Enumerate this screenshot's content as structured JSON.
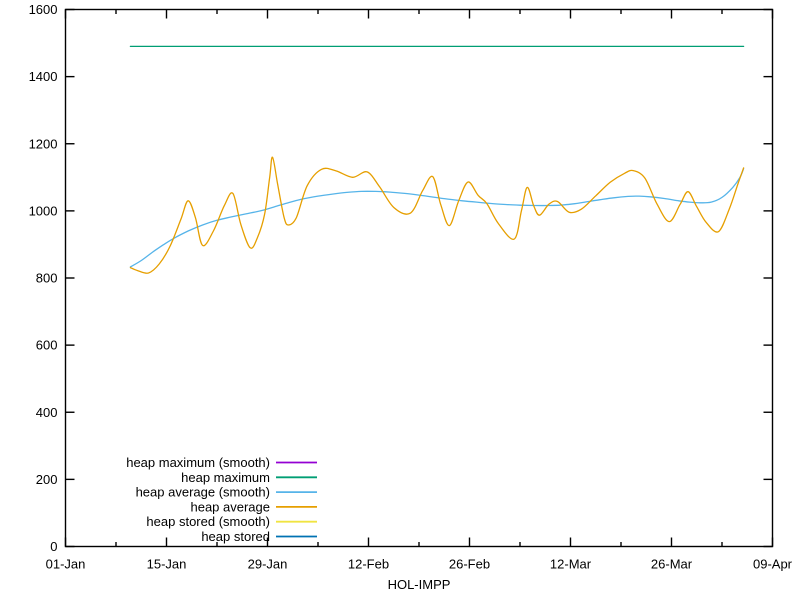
{
  "window": {
    "background": "#ffffff",
    "foreground": "#000000"
  },
  "chart_data": {
    "type": "line",
    "title": "",
    "xlabel": "HOL-IMPP",
    "ylabel": "",
    "grid": false,
    "ylim": [
      0,
      1600
    ],
    "y_tick_interval": 200,
    "y_tick_values": [
      0,
      200,
      400,
      600,
      800,
      1000,
      1200,
      1400,
      1600
    ],
    "y_tick_labels": [
      "0",
      "200",
      "400",
      "600",
      "800",
      "1000",
      "1200",
      "1400",
      "1600"
    ],
    "x_axis": {
      "range_days": [
        0,
        98
      ],
      "major_tick_days": [
        0,
        14,
        28,
        42,
        56,
        70,
        84,
        98
      ],
      "major_tick_labels": [
        "01-Jan",
        "15-Jan",
        "29-Jan",
        "12-Feb",
        "26-Feb",
        "12-Mar",
        "26-Mar",
        "09-Apr"
      ],
      "minor_tick_days": [
        7,
        21,
        35,
        49,
        63,
        77,
        91
      ]
    },
    "legend_position": "bottom-left",
    "legend": [
      {
        "label": "heap maximum (smooth)",
        "color": "#9400d3"
      },
      {
        "label": "heap maximum",
        "color": "#009e73"
      },
      {
        "label": "heap average (smooth)",
        "color": "#56b4e9"
      },
      {
        "label": "heap average",
        "color": "#e69f00"
      },
      {
        "label": "heap stored (smooth)",
        "color": "#f0e442"
      },
      {
        "label": "heap stored",
        "color": "#0072b2"
      }
    ],
    "series": [
      {
        "name": "heap maximum",
        "color": "#009e73",
        "smooth": false,
        "points": [
          [
            9,
            1490
          ],
          [
            94,
            1490
          ]
        ]
      },
      {
        "name": "heap average (smooth)",
        "color": "#56b4e9",
        "smooth": true,
        "points": [
          [
            9,
            833
          ],
          [
            10.5,
            852
          ],
          [
            12,
            876
          ],
          [
            13.5,
            898
          ],
          [
            15,
            918
          ],
          [
            17,
            940
          ],
          [
            19,
            958
          ],
          [
            21,
            972
          ],
          [
            23,
            982
          ],
          [
            25,
            991
          ],
          [
            27,
            1000
          ],
          [
            29,
            1012
          ],
          [
            31,
            1025
          ],
          [
            33,
            1036
          ],
          [
            35,
            1044
          ],
          [
            37,
            1050
          ],
          [
            39,
            1055
          ],
          [
            41,
            1058
          ],
          [
            43,
            1058
          ],
          [
            45,
            1056
          ],
          [
            47,
            1052
          ],
          [
            49,
            1047
          ],
          [
            51,
            1041
          ],
          [
            53,
            1035
          ],
          [
            55,
            1030
          ],
          [
            57,
            1026
          ],
          [
            59,
            1022
          ],
          [
            61,
            1019
          ],
          [
            63,
            1017
          ],
          [
            65,
            1016
          ],
          [
            67,
            1016
          ],
          [
            68.5,
            1017
          ],
          [
            70,
            1020
          ],
          [
            72,
            1026
          ],
          [
            74,
            1033
          ],
          [
            76,
            1039
          ],
          [
            78,
            1043
          ],
          [
            79.5,
            1044
          ],
          [
            81,
            1042
          ],
          [
            83,
            1037
          ],
          [
            85,
            1030
          ],
          [
            86.5,
            1026
          ],
          [
            88,
            1024
          ],
          [
            89.5,
            1026
          ],
          [
            91,
            1040
          ],
          [
            92.5,
            1070
          ],
          [
            93.5,
            1100
          ],
          [
            94,
            1126
          ]
        ]
      },
      {
        "name": "heap average",
        "color": "#e69f00",
        "smooth": true,
        "points": [
          [
            9,
            831
          ],
          [
            10,
            822
          ],
          [
            11.5,
            815
          ],
          [
            13,
            842
          ],
          [
            14.5,
            895
          ],
          [
            16,
            975
          ],
          [
            17,
            1030
          ],
          [
            18,
            980
          ],
          [
            19,
            897
          ],
          [
            20.5,
            940
          ],
          [
            22,
            1015
          ],
          [
            23.2,
            1052
          ],
          [
            24.3,
            960
          ],
          [
            25.6,
            890
          ],
          [
            26.6,
            920
          ],
          [
            27.6,
            990
          ],
          [
            28.3,
            1100
          ],
          [
            28.7,
            1160
          ],
          [
            29.4,
            1080
          ],
          [
            30.3,
            980
          ],
          [
            30.9,
            958
          ],
          [
            32,
            980
          ],
          [
            33.5,
            1075
          ],
          [
            35.5,
            1124
          ],
          [
            37.5,
            1119
          ],
          [
            39.8,
            1100
          ],
          [
            41.8,
            1116
          ],
          [
            43.5,
            1073
          ],
          [
            45.5,
            1010
          ],
          [
            47.8,
            993
          ],
          [
            49.5,
            1060
          ],
          [
            50.9,
            1102
          ],
          [
            52,
            1020
          ],
          [
            53.2,
            956
          ],
          [
            54.5,
            1030
          ],
          [
            55.8,
            1086
          ],
          [
            57.2,
            1046
          ],
          [
            58.4,
            1022
          ],
          [
            60,
            962
          ],
          [
            62.2,
            916
          ],
          [
            63.2,
            1000
          ],
          [
            64,
            1070
          ],
          [
            64.9,
            1015
          ],
          [
            65.7,
            987
          ],
          [
            67,
            1020
          ],
          [
            68.2,
            1028
          ],
          [
            69.8,
            996
          ],
          [
            71.5,
            1005
          ],
          [
            73.5,
            1045
          ],
          [
            75.5,
            1085
          ],
          [
            77.5,
            1112
          ],
          [
            78.7,
            1120
          ],
          [
            80.3,
            1098
          ],
          [
            82,
            1020
          ],
          [
            83.7,
            968
          ],
          [
            85.2,
            1020
          ],
          [
            86.3,
            1057
          ],
          [
            87.5,
            1012
          ],
          [
            88.8,
            966
          ],
          [
            90.5,
            938
          ],
          [
            92,
            1005
          ],
          [
            93.2,
            1080
          ],
          [
            94,
            1128
          ]
        ]
      }
    ]
  }
}
